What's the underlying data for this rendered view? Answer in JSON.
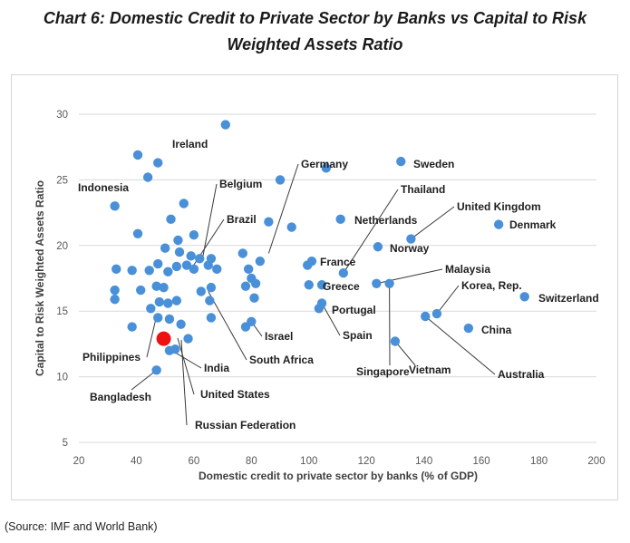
{
  "title_line1": "Chart 6: Domestic Credit to Private Sector by Banks vs Capital to Risk",
  "title_line2": "Weighted Assets Ratio",
  "source": "(Source: IMF and World Bank)",
  "colors": {
    "point": "#4a90d9",
    "highlight": "#ee1111",
    "grid": "#d9d9d9",
    "leader": "#3a3a3a"
  },
  "chart_data": {
    "type": "scatter",
    "xlabel": "Domestic credit to private sector by banks (% of GDP)",
    "ylabel": "Capital to Risk Weighted Assets Ratio",
    "xlim": [
      20,
      200
    ],
    "ylim": [
      5,
      30
    ],
    "xticks": [
      20,
      40,
      60,
      80,
      100,
      120,
      140,
      160,
      180,
      200
    ],
    "yticks": [
      5,
      10,
      15,
      20,
      25,
      30
    ],
    "grid": "horizontal",
    "points": [
      [
        71,
        29.2
      ],
      [
        40.5,
        26.9
      ],
      [
        47.5,
        26.3
      ],
      [
        44,
        25.2
      ],
      [
        106,
        25.9
      ],
      [
        132,
        26.4
      ],
      [
        32.5,
        23
      ],
      [
        90,
        25
      ],
      [
        56.5,
        23.2
      ],
      [
        52,
        22
      ],
      [
        60,
        20.8
      ],
      [
        54.5,
        20.4
      ],
      [
        40.5,
        20.9
      ],
      [
        86,
        21.8
      ],
      [
        94,
        21.4
      ],
      [
        111,
        22
      ],
      [
        135.5,
        20.5
      ],
      [
        166,
        21.6
      ],
      [
        124,
        19.9
      ],
      [
        50,
        19.8
      ],
      [
        55,
        19.5
      ],
      [
        59,
        19.2
      ],
      [
        62,
        19
      ],
      [
        66,
        19
      ],
      [
        77,
        19.4
      ],
      [
        83,
        18.8
      ],
      [
        99.5,
        18.5
      ],
      [
        101,
        18.8
      ],
      [
        112,
        17.9
      ],
      [
        57.5,
        18.5
      ],
      [
        60,
        18.2
      ],
      [
        65,
        18.5
      ],
      [
        68,
        18.2
      ],
      [
        33,
        18.2
      ],
      [
        38.5,
        18.1
      ],
      [
        44.5,
        18.1
      ],
      [
        47.5,
        18.6
      ],
      [
        51,
        18
      ],
      [
        54,
        18.4
      ],
      [
        79,
        18.2
      ],
      [
        80,
        17.5
      ],
      [
        81.5,
        17.1
      ],
      [
        78,
        16.9
      ],
      [
        100,
        17
      ],
      [
        104.5,
        17
      ],
      [
        123.5,
        17.1
      ],
      [
        128,
        17.1
      ],
      [
        32.5,
        16.6
      ],
      [
        41.5,
        16.6
      ],
      [
        47,
        16.9
      ],
      [
        49.5,
        16.8
      ],
      [
        62.5,
        16.5
      ],
      [
        66,
        16.8
      ],
      [
        81,
        16
      ],
      [
        32.5,
        15.9
      ],
      [
        45,
        15.2
      ],
      [
        48,
        15.7
      ],
      [
        51,
        15.6
      ],
      [
        54,
        15.8
      ],
      [
        65.5,
        15.8
      ],
      [
        104.5,
        15.6
      ],
      [
        103.5,
        15.2
      ],
      [
        175,
        16.1
      ],
      [
        144.5,
        14.8
      ],
      [
        140.5,
        14.6
      ],
      [
        38.5,
        13.8
      ],
      [
        47.5,
        14.5
      ],
      [
        51.5,
        14.4
      ],
      [
        55.5,
        14
      ],
      [
        66,
        14.5
      ],
      [
        78,
        13.8
      ],
      [
        80,
        14.2
      ],
      [
        155.5,
        13.7
      ],
      [
        58,
        12.9
      ],
      [
        53.5,
        12.1
      ],
      [
        51.5,
        12
      ],
      [
        130,
        12.7
      ],
      [
        47,
        10.5
      ]
    ],
    "highlight_point": [
      49.5,
      12.9
    ],
    "labels": [
      {
        "name": "Ireland",
        "x": 46.5,
        "y": 26.3,
        "pos": "right"
      },
      {
        "name": "Indonesia",
        "x": 32.5,
        "y": 23,
        "pos": "above-left"
      },
      {
        "name": "Belgium",
        "x": 63,
        "y": 19,
        "pos": "leader"
      },
      {
        "name": "Brazil",
        "x": 59,
        "y": 18.2,
        "pos": "leader"
      },
      {
        "name": "Germany",
        "x": 86,
        "y": 19.4,
        "pos": "leader"
      },
      {
        "name": "Sweden",
        "x": 132,
        "y": 26.4,
        "pos": "right"
      },
      {
        "name": "Thailand",
        "x": 112,
        "y": 17.9,
        "pos": "leader"
      },
      {
        "name": "Netherlands",
        "x": 111,
        "y": 22,
        "pos": "right"
      },
      {
        "name": "United Kingdom",
        "x": 135.5,
        "y": 20.5,
        "pos": "leader"
      },
      {
        "name": "Denmark",
        "x": 166,
        "y": 21.6,
        "pos": "right"
      },
      {
        "name": "Norway",
        "x": 124,
        "y": 19.9,
        "pos": "right"
      },
      {
        "name": "France",
        "x": 101,
        "y": 18.8,
        "pos": "right"
      },
      {
        "name": "Greece",
        "x": 104.5,
        "y": 17,
        "pos": "right"
      },
      {
        "name": "Malaysia",
        "x": 123.5,
        "y": 17.1,
        "pos": "leader"
      },
      {
        "name": "Korea, Rep.",
        "x": 144.5,
        "y": 14.8,
        "pos": "leader"
      },
      {
        "name": "Switzerland",
        "x": 175,
        "y": 16.1,
        "pos": "right"
      },
      {
        "name": "Portugal",
        "x": 103.5,
        "y": 15.2,
        "pos": "right"
      },
      {
        "name": "China",
        "x": 155.5,
        "y": 13.7,
        "pos": "right"
      },
      {
        "name": "Spain",
        "x": 104.5,
        "y": 15.6,
        "pos": "leader"
      },
      {
        "name": "Israel",
        "x": 80,
        "y": 14.2,
        "pos": "leader"
      },
      {
        "name": "South Africa",
        "x": 65,
        "y": 16.5,
        "pos": "leader"
      },
      {
        "name": "Singapore",
        "x": 128,
        "y": 17.1,
        "pos": "leader"
      },
      {
        "name": "Vietnam",
        "x": 130,
        "y": 12.7,
        "pos": "leader"
      },
      {
        "name": "Australia",
        "x": 140.5,
        "y": 14.6,
        "pos": "leader"
      },
      {
        "name": "Philippines",
        "x": 47.5,
        "y": 14.5,
        "pos": "leader"
      },
      {
        "name": "India",
        "x": 51.5,
        "y": 12.1,
        "pos": "leader"
      },
      {
        "name": "United States",
        "x": 49.5,
        "y": 12.9,
        "pos": "leader"
      },
      {
        "name": "Bangladesh",
        "x": 47,
        "y": 10.5,
        "pos": "leader"
      },
      {
        "name": "Russian Federation",
        "x": 47,
        "y": 14.5,
        "pos": "leader"
      }
    ]
  }
}
